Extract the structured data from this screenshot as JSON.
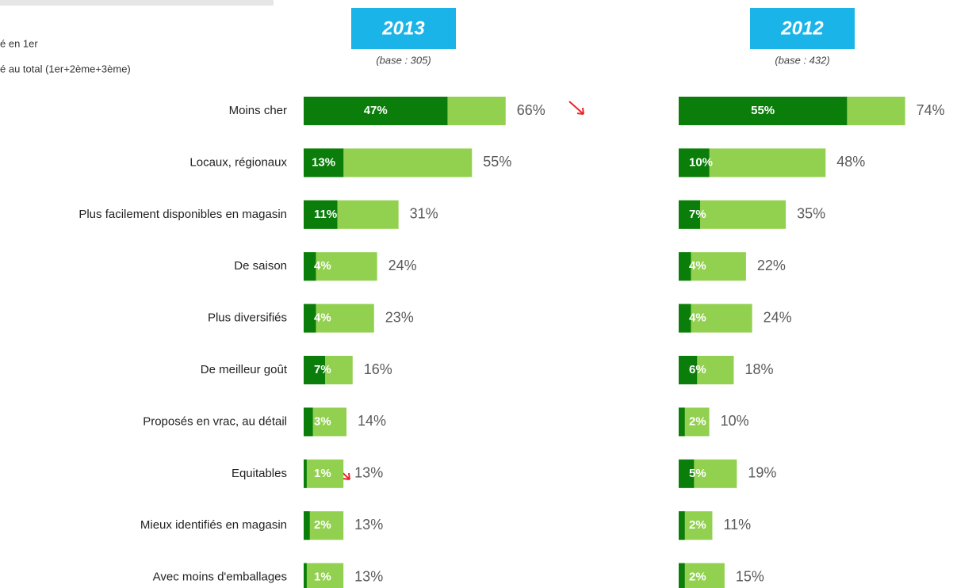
{
  "chart_data": {
    "type": "bar",
    "legend": [
      {
        "label": "é en 1er",
        "color": "#0a7d0a"
      },
      {
        "label": "é au total (1er+2ème+3ème)",
        "color": "#92d050"
      }
    ],
    "categories": [
      "Moins cher",
      "Locaux, régionaux",
      "Plus facilement disponibles en magasin",
      "De saison",
      "Plus diversifiés",
      "De meilleur goût",
      "Proposés en vrac, au détail",
      "Equitables",
      "Mieux identifiés en magasin",
      "Avec moins d'emballages"
    ],
    "panels": [
      {
        "title": "2013",
        "subtitle": "(base : 305)",
        "series": [
          {
            "color": "#92d050",
            "values": [
              66,
              55,
              31,
              24,
              23,
              16,
              14,
              13,
              13,
              13
            ],
            "value_labels": [
              "66%",
              "55%",
              "31%",
              "24%",
              "23%",
              "16%",
              "14%",
              "13%",
              "13%",
              "13%"
            ]
          },
          {
            "color": "#0a7d0a",
            "values": [
              47,
              13,
              11,
              4,
              4,
              7,
              3,
              1,
              2,
              1
            ],
            "value_labels": [
              "47%",
              "13%",
              "11%",
              "4%",
              "4%",
              "7%",
              "3%",
              "1%",
              "2%",
              "1%"
            ]
          }
        ]
      },
      {
        "title": "2012",
        "subtitle": "(base : 432)",
        "series": [
          {
            "color": "#92d050",
            "values": [
              74,
              48,
              35,
              22,
              24,
              18,
              10,
              19,
              11,
              15
            ],
            "value_labels": [
              "74%",
              "48%",
              "35%",
              "22%",
              "24%",
              "18%",
              "10%",
              "19%",
              "11%",
              "15%"
            ]
          },
          {
            "color": "#0a7d0a",
            "values": [
              55,
              10,
              7,
              4,
              4,
              6,
              2,
              5,
              2,
              2
            ],
            "value_labels": [
              "55%",
              "10%",
              "7%",
              "4%",
              "4%",
              "6%",
              "2%",
              "5%",
              "2%",
              "2%"
            ]
          }
        ]
      }
    ]
  }
}
